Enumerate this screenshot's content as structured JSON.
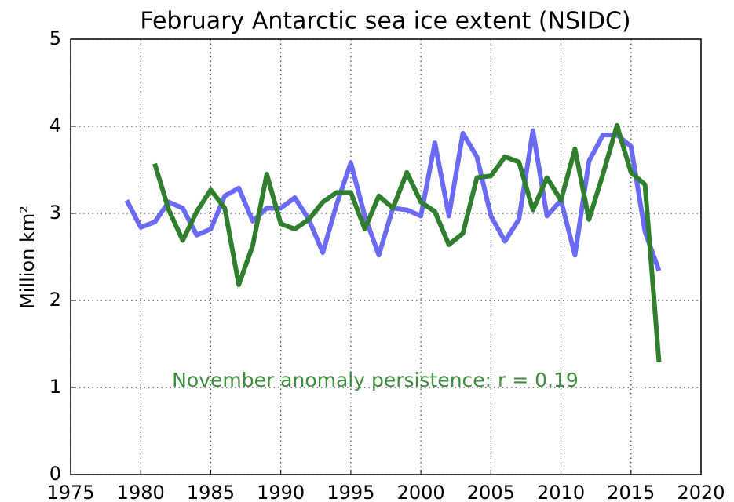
{
  "chart_data": {
    "type": "line",
    "title": "February Antarctic sea ice extent (NSIDC)",
    "ylabel": "Million km²",
    "annotation": "November anomaly persistence: r = 0.19",
    "x": [
      1979,
      1980,
      1981,
      1982,
      1983,
      1984,
      1985,
      1986,
      1987,
      1988,
      1989,
      1990,
      1991,
      1992,
      1993,
      1994,
      1995,
      1996,
      1997,
      1998,
      1999,
      2000,
      2001,
      2002,
      2003,
      2004,
      2005,
      2006,
      2007,
      2008,
      2009,
      2010,
      2011,
      2012,
      2013,
      2014,
      2015,
      2016,
      2017
    ],
    "series": [
      {
        "color": "#6a6af7",
        "values": [
          3.15,
          2.84,
          2.9,
          3.13,
          3.06,
          2.75,
          2.82,
          3.2,
          3.29,
          2.91,
          3.06,
          3.06,
          3.18,
          2.93,
          2.55,
          3.11,
          3.58,
          2.97,
          2.52,
          3.06,
          3.04,
          2.97,
          3.81,
          2.97,
          3.92,
          3.65,
          2.97,
          2.68,
          2.93,
          3.95,
          2.97,
          3.15,
          2.52,
          3.6,
          3.9,
          3.9,
          3.77,
          2.79,
          2.34
        ]
      },
      {
        "color": "#2f7f2f",
        "values": [
          null,
          null,
          3.57,
          3.04,
          2.69,
          3.02,
          3.27,
          3.06,
          2.18,
          2.63,
          3.45,
          2.88,
          2.82,
          2.93,
          3.13,
          3.24,
          3.24,
          2.82,
          3.2,
          3.06,
          3.47,
          3.13,
          3.02,
          2.64,
          2.77,
          3.41,
          3.43,
          3.65,
          3.59,
          3.04,
          3.41,
          3.15,
          3.74,
          2.93,
          3.45,
          4.01,
          3.47,
          3.33,
          1.29
        ]
      }
    ],
    "xlim": [
      1975,
      2020
    ],
    "xticks": [
      1975,
      1980,
      1985,
      1990,
      1995,
      2000,
      2005,
      2010,
      2015,
      2020
    ],
    "ylim": [
      0,
      5
    ],
    "yticks": [
      0,
      1,
      2,
      3,
      4,
      5
    ],
    "grid": true
  }
}
